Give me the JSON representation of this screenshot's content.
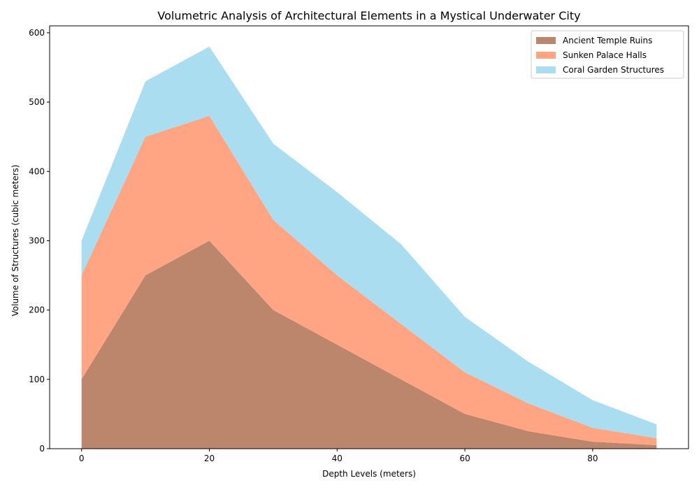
{
  "chart_data": {
    "type": "area",
    "stacked": true,
    "title": "Volumetric Analysis of Architectural Elements in a Mystical Underwater City",
    "xlabel": "Depth Levels (meters)",
    "ylabel": "Volume of Structures (cubic meters)",
    "x": [
      0,
      10,
      20,
      30,
      40,
      50,
      60,
      70,
      80,
      90
    ],
    "xlim": [
      -5,
      95
    ],
    "ylim": [
      0,
      610
    ],
    "xticks": [
      0,
      20,
      40,
      60,
      80
    ],
    "yticks": [
      0,
      100,
      200,
      300,
      400,
      500,
      600
    ],
    "grid": false,
    "legend_position": "top-right",
    "series": [
      {
        "name": "Ancient Temple Ruins",
        "color": "#a0522d",
        "opacity": 0.7,
        "values": [
          100,
          250,
          300,
          200,
          150,
          100,
          50,
          25,
          10,
          5
        ]
      },
      {
        "name": "Sunken Palace Halls",
        "color": "#ff7f50",
        "opacity": 0.7,
        "values": [
          150,
          200,
          180,
          130,
          100,
          80,
          60,
          40,
          20,
          10
        ]
      },
      {
        "name": "Coral Garden Structures",
        "color": "#87ceeb",
        "opacity": 0.7,
        "values": [
          50,
          80,
          100,
          110,
          120,
          115,
          80,
          60,
          40,
          20
        ]
      }
    ]
  }
}
